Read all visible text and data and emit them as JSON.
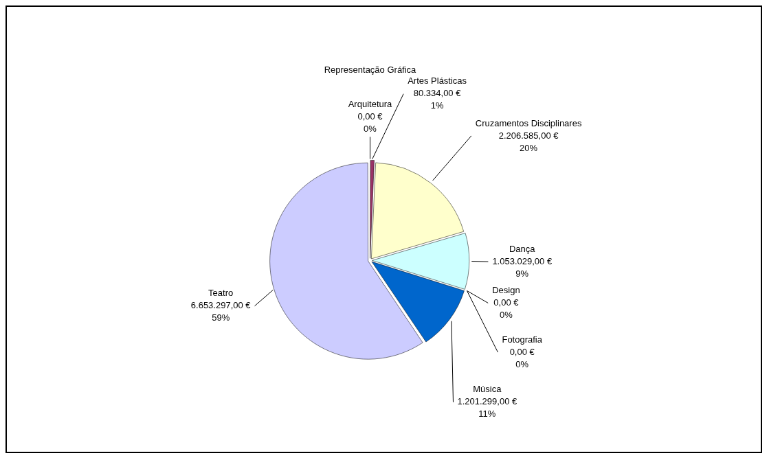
{
  "chart_data": {
    "type": "pie",
    "title": "Representação Gráfica",
    "categories": [
      "Arquitetura",
      "Artes Plásticas",
      "Cruzamentos Disciplinares",
      "Dança",
      "Design",
      "Fotografia",
      "Música",
      "Teatro"
    ],
    "values": [
      0,
      80334,
      2206585,
      1053029,
      0,
      0,
      1201299,
      6653297
    ],
    "colors": [
      "#9999ff",
      "#993366",
      "#ffffcc",
      "#ccffff",
      "#660066",
      "#ff8080",
      "#0066cc",
      "#ccccff"
    ],
    "value_labels": [
      "0,00 €\n0%",
      "80.334,00 €\n1%",
      "2.206.585,00 €\n20%",
      "1.053.029,00 €\n9%",
      "0,00 €\n0%",
      "0,00 €\n0%",
      "1.201.299,00 €\n11%",
      "6.653.297,00 €\n59%"
    ],
    "legend": false
  }
}
